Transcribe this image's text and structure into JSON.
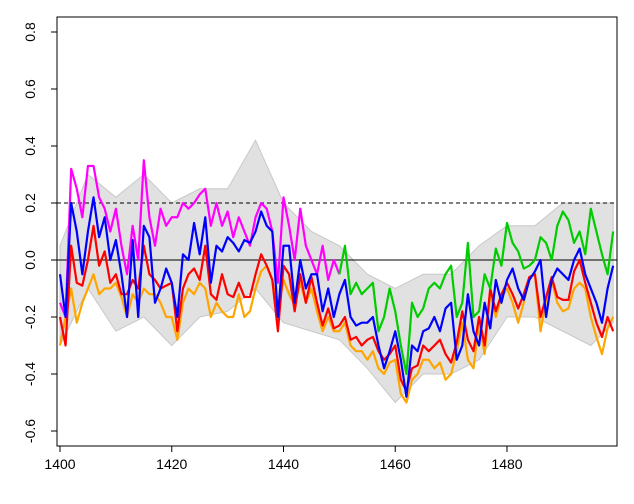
{
  "chart_data": {
    "type": "line",
    "title": "",
    "xlabel": "",
    "ylabel": "",
    "xlim": [
      1399.5,
      1499.7
    ],
    "ylim": [
      -0.65,
      0.85
    ],
    "x_ticks": [
      "1400",
      "1420",
      "1440",
      "1460",
      "1480"
    ],
    "x_tick_values": [
      1400,
      1420,
      1440,
      1460,
      1480
    ],
    "y_ticks": [
      "-0.6",
      "-0.4",
      "-0.2",
      "0.0",
      "0.2",
      "0.4",
      "0.6",
      "0.8"
    ],
    "y_tick_values": [
      -0.6,
      -0.4,
      -0.2,
      0.0,
      0.2,
      0.4,
      0.6,
      0.8
    ],
    "grid": false,
    "reference_lines": [
      {
        "y": 0.0,
        "style": "solid",
        "color": "#000000"
      },
      {
        "y": 0.2,
        "style": "dashed",
        "color": "#000000"
      }
    ],
    "ensemble": {
      "color": "#c8c8c8",
      "x": [
        1400,
        1405,
        1410,
        1415,
        1420,
        1425,
        1430,
        1435,
        1440,
        1445,
        1450,
        1455,
        1460,
        1465,
        1470,
        1475,
        1480,
        1485,
        1490,
        1495,
        1499
      ],
      "upper": [
        0.05,
        0.3,
        0.22,
        0.3,
        0.2,
        0.25,
        0.25,
        0.42,
        0.2,
        0.1,
        0.05,
        -0.05,
        -0.1,
        -0.05,
        -0.05,
        0.05,
        0.12,
        0.12,
        0.2,
        0.2,
        0.2
      ],
      "lower": [
        -0.3,
        -0.1,
        -0.25,
        -0.2,
        -0.3,
        -0.2,
        -0.18,
        -0.1,
        -0.22,
        -0.25,
        -0.28,
        -0.38,
        -0.5,
        -0.4,
        -0.4,
        -0.35,
        -0.2,
        -0.2,
        -0.25,
        -0.3,
        -0.22
      ]
    },
    "series": [
      {
        "color": "#ffa500",
        "start": 1400,
        "values": [
          -0.3,
          -0.2,
          -0.1,
          -0.22,
          -0.15,
          -0.1,
          -0.05,
          -0.12,
          -0.1,
          -0.1,
          -0.08,
          -0.13,
          -0.2,
          -0.12,
          -0.15,
          -0.1,
          -0.12,
          -0.12,
          -0.15,
          -0.2,
          -0.2,
          -0.28,
          -0.15,
          -0.1,
          -0.12,
          -0.08,
          -0.1,
          -0.2,
          -0.15,
          -0.18,
          -0.2,
          -0.2,
          -0.12,
          -0.2,
          -0.18,
          -0.1,
          -0.04,
          -0.02,
          -0.07,
          -0.18,
          -0.07,
          -0.12,
          -0.16,
          -0.08,
          -0.15,
          -0.1,
          -0.18,
          -0.25,
          -0.2,
          -0.25,
          -0.25,
          -0.22,
          -0.3,
          -0.32,
          -0.32,
          -0.35,
          -0.32,
          -0.38,
          -0.4,
          -0.36,
          -0.35,
          -0.47,
          -0.5,
          -0.42,
          -0.4,
          -0.35,
          -0.35,
          -0.38,
          -0.36,
          -0.42,
          -0.4,
          -0.32,
          -0.22,
          -0.35,
          -0.38,
          -0.22,
          -0.33,
          -0.12,
          -0.2,
          -0.13,
          -0.1,
          -0.15,
          -0.22,
          -0.15,
          -0.06,
          -0.05,
          -0.25,
          -0.14,
          -0.07,
          -0.15,
          -0.18,
          -0.17,
          -0.1,
          -0.08,
          -0.1,
          -0.2,
          -0.27,
          -0.33,
          -0.24,
          -0.2
        ]
      },
      {
        "color": "#ff0000",
        "start": 1400,
        "values": [
          -0.2,
          -0.3,
          0.05,
          -0.08,
          -0.09,
          0.0,
          0.12,
          -0.02,
          0.03,
          -0.08,
          -0.05,
          -0.12,
          -0.12,
          -0.07,
          -0.1,
          0.05,
          -0.05,
          -0.07,
          -0.1,
          -0.09,
          -0.08,
          -0.25,
          -0.1,
          -0.05,
          -0.03,
          -0.07,
          0.05,
          -0.12,
          -0.14,
          -0.05,
          -0.12,
          -0.13,
          -0.08,
          -0.13,
          -0.13,
          -0.05,
          0.02,
          -0.02,
          -0.07,
          -0.25,
          -0.02,
          -0.05,
          -0.18,
          -0.05,
          -0.15,
          -0.06,
          -0.15,
          -0.23,
          -0.17,
          -0.24,
          -0.23,
          -0.2,
          -0.28,
          -0.27,
          -0.3,
          -0.28,
          -0.27,
          -0.32,
          -0.35,
          -0.33,
          -0.3,
          -0.42,
          -0.46,
          -0.38,
          -0.37,
          -0.3,
          -0.32,
          -0.3,
          -0.28,
          -0.33,
          -0.36,
          -0.29,
          -0.18,
          -0.28,
          -0.32,
          -0.2,
          -0.3,
          -0.1,
          -0.18,
          -0.12,
          -0.08,
          -0.12,
          -0.17,
          -0.12,
          -0.06,
          -0.05,
          -0.2,
          -0.13,
          -0.06,
          -0.13,
          -0.14,
          -0.14,
          -0.04,
          0.0,
          -0.08,
          -0.15,
          -0.22,
          -0.27,
          -0.2,
          -0.25
        ]
      },
      {
        "color": "#ff00ff",
        "start": 1400,
        "values": [
          -0.15,
          -0.2,
          0.32,
          0.25,
          0.15,
          0.33,
          0.33,
          0.22,
          0.18,
          0.1,
          0.18,
          0.05,
          -0.05,
          0.12,
          0.0,
          0.35,
          0.15,
          0.05,
          0.18,
          0.12,
          0.15,
          0.15,
          0.2,
          0.18,
          0.2,
          0.23,
          0.25,
          0.12,
          0.2,
          0.12,
          0.17,
          0.08,
          0.15,
          0.1,
          0.05,
          0.15,
          0.2,
          0.18,
          0.1,
          -0.08,
          0.22,
          0.12,
          0.0,
          0.18,
          0.05,
          0.0,
          -0.05,
          0.05,
          -0.07,
          0.0,
          -0.05
        ]
      },
      {
        "color": "#00cc00",
        "start": 1450,
        "values": [
          -0.05,
          0.05,
          -0.12,
          -0.08,
          -0.12,
          -0.1,
          -0.08,
          -0.25,
          -0.2,
          -0.1,
          -0.18,
          -0.3,
          -0.4,
          -0.15,
          -0.2,
          -0.17,
          -0.1,
          -0.08,
          -0.1,
          -0.05,
          -0.02,
          -0.2,
          -0.15,
          0.06,
          -0.2,
          -0.18,
          -0.05,
          -0.1,
          0.04,
          -0.02,
          0.13,
          0.06,
          0.03,
          -0.03,
          -0.02,
          0.0,
          0.08,
          0.06,
          0.0,
          0.12,
          0.17,
          0.14,
          0.06,
          0.1,
          0.02,
          0.18,
          0.1,
          0.02,
          -0.05,
          0.1
        ]
      },
      {
        "color": "#0000ff",
        "start": 1400,
        "values": [
          -0.05,
          -0.2,
          0.2,
          0.1,
          -0.05,
          0.1,
          0.22,
          0.08,
          0.15,
          0.0,
          0.07,
          -0.05,
          -0.2,
          0.07,
          -0.2,
          0.12,
          0.08,
          -0.15,
          -0.1,
          -0.03,
          -0.08,
          -0.2,
          0.02,
          0.0,
          0.13,
          0.02,
          0.15,
          -0.08,
          0.05,
          0.03,
          0.08,
          0.06,
          0.03,
          0.07,
          0.06,
          0.1,
          0.17,
          0.12,
          0.1,
          -0.2,
          0.05,
          0.05,
          -0.15,
          0.0,
          -0.1,
          -0.05,
          -0.05,
          -0.18,
          -0.1,
          -0.2,
          -0.12,
          -0.07,
          -0.2,
          -0.23,
          -0.22,
          -0.22,
          -0.2,
          -0.3,
          -0.38,
          -0.32,
          -0.25,
          -0.35,
          -0.48,
          -0.3,
          -0.32,
          -0.25,
          -0.24,
          -0.2,
          -0.25,
          -0.17,
          -0.15,
          -0.35,
          -0.3,
          -0.12,
          -0.25,
          -0.3,
          -0.15,
          -0.24,
          -0.07,
          -0.15,
          -0.07,
          -0.03,
          -0.1,
          -0.14,
          -0.07,
          -0.04,
          0.0,
          -0.2,
          -0.07,
          -0.03,
          -0.05,
          -0.07,
          0.0,
          0.04,
          -0.05,
          -0.1,
          -0.15,
          -0.22,
          -0.1,
          -0.02
        ]
      }
    ]
  }
}
